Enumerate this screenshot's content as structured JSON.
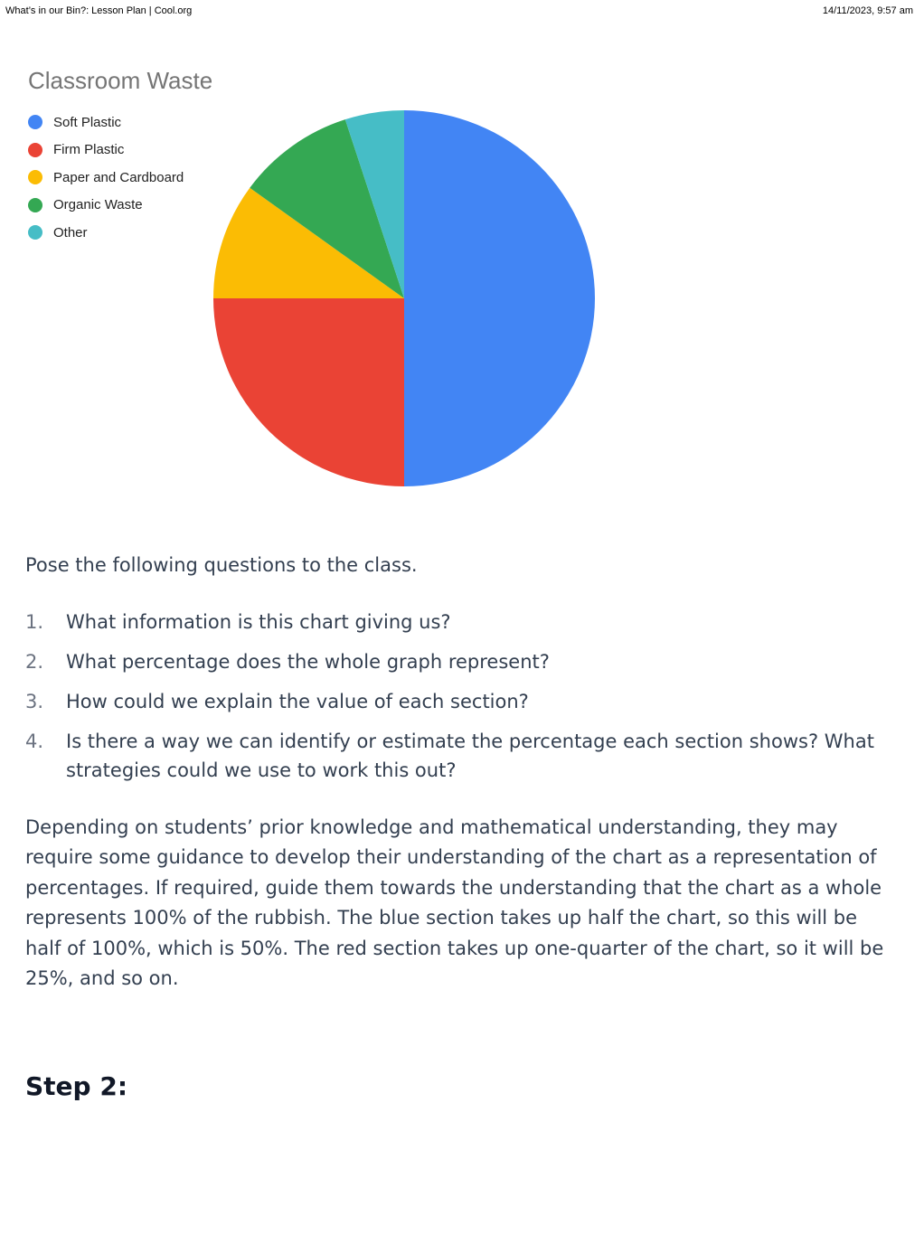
{
  "print_header": {
    "page_title": "What’s in our Bin?: Lesson Plan | Cool.org",
    "datetime": "14/11/2023, 9:57 am"
  },
  "chart_data": {
    "type": "pie",
    "title": "Classroom Waste",
    "legend_position": "left",
    "categories": [
      "Soft Plastic",
      "Firm Plastic",
      "Paper and Cardboard",
      "Organic Waste",
      "Other"
    ],
    "values": [
      50,
      25,
      10,
      10,
      5
    ],
    "unit": "%",
    "colors": [
      "#4285f4",
      "#ea4335",
      "#fbbc04",
      "#34a853",
      "#46bdc6"
    ],
    "start_angle_deg": 0,
    "direction": "clockwise",
    "legend": [
      {
        "label": "Soft Plastic",
        "color": "#4285f4"
      },
      {
        "label": "Firm Plastic",
        "color": "#ea4335"
      },
      {
        "label": "Paper and Cardboard",
        "color": "#fbbc04"
      },
      {
        "label": "Organic Waste",
        "color": "#34a853"
      },
      {
        "label": "Other",
        "color": "#46bdc6"
      }
    ]
  },
  "content": {
    "intro": "Pose the following questions to the class.",
    "questions": [
      {
        "num": "1.",
        "text": "What information is this chart giving us?"
      },
      {
        "num": "2.",
        "text": "What percentage does the whole graph represent?"
      },
      {
        "num": "3.",
        "text": "How could we explain the value of each section?"
      },
      {
        "num": "4.",
        "text": "Is there a way we can identify or estimate the percentage each section shows? What strategies could we use to work this out?"
      }
    ],
    "paragraph": "Depending on students’ prior knowledge and mathematical understanding, they may require some guidance to develop their understanding of the chart as a representation of percentages. If required, guide them towards the understanding that the chart as a whole represents 100% of the rubbish. The blue section takes up half the chart, so this will be half of 100%, which is 50%. The red section takes up one-quarter of the chart, so it will be 25%, and so on.",
    "step_heading": "Step 2:"
  }
}
